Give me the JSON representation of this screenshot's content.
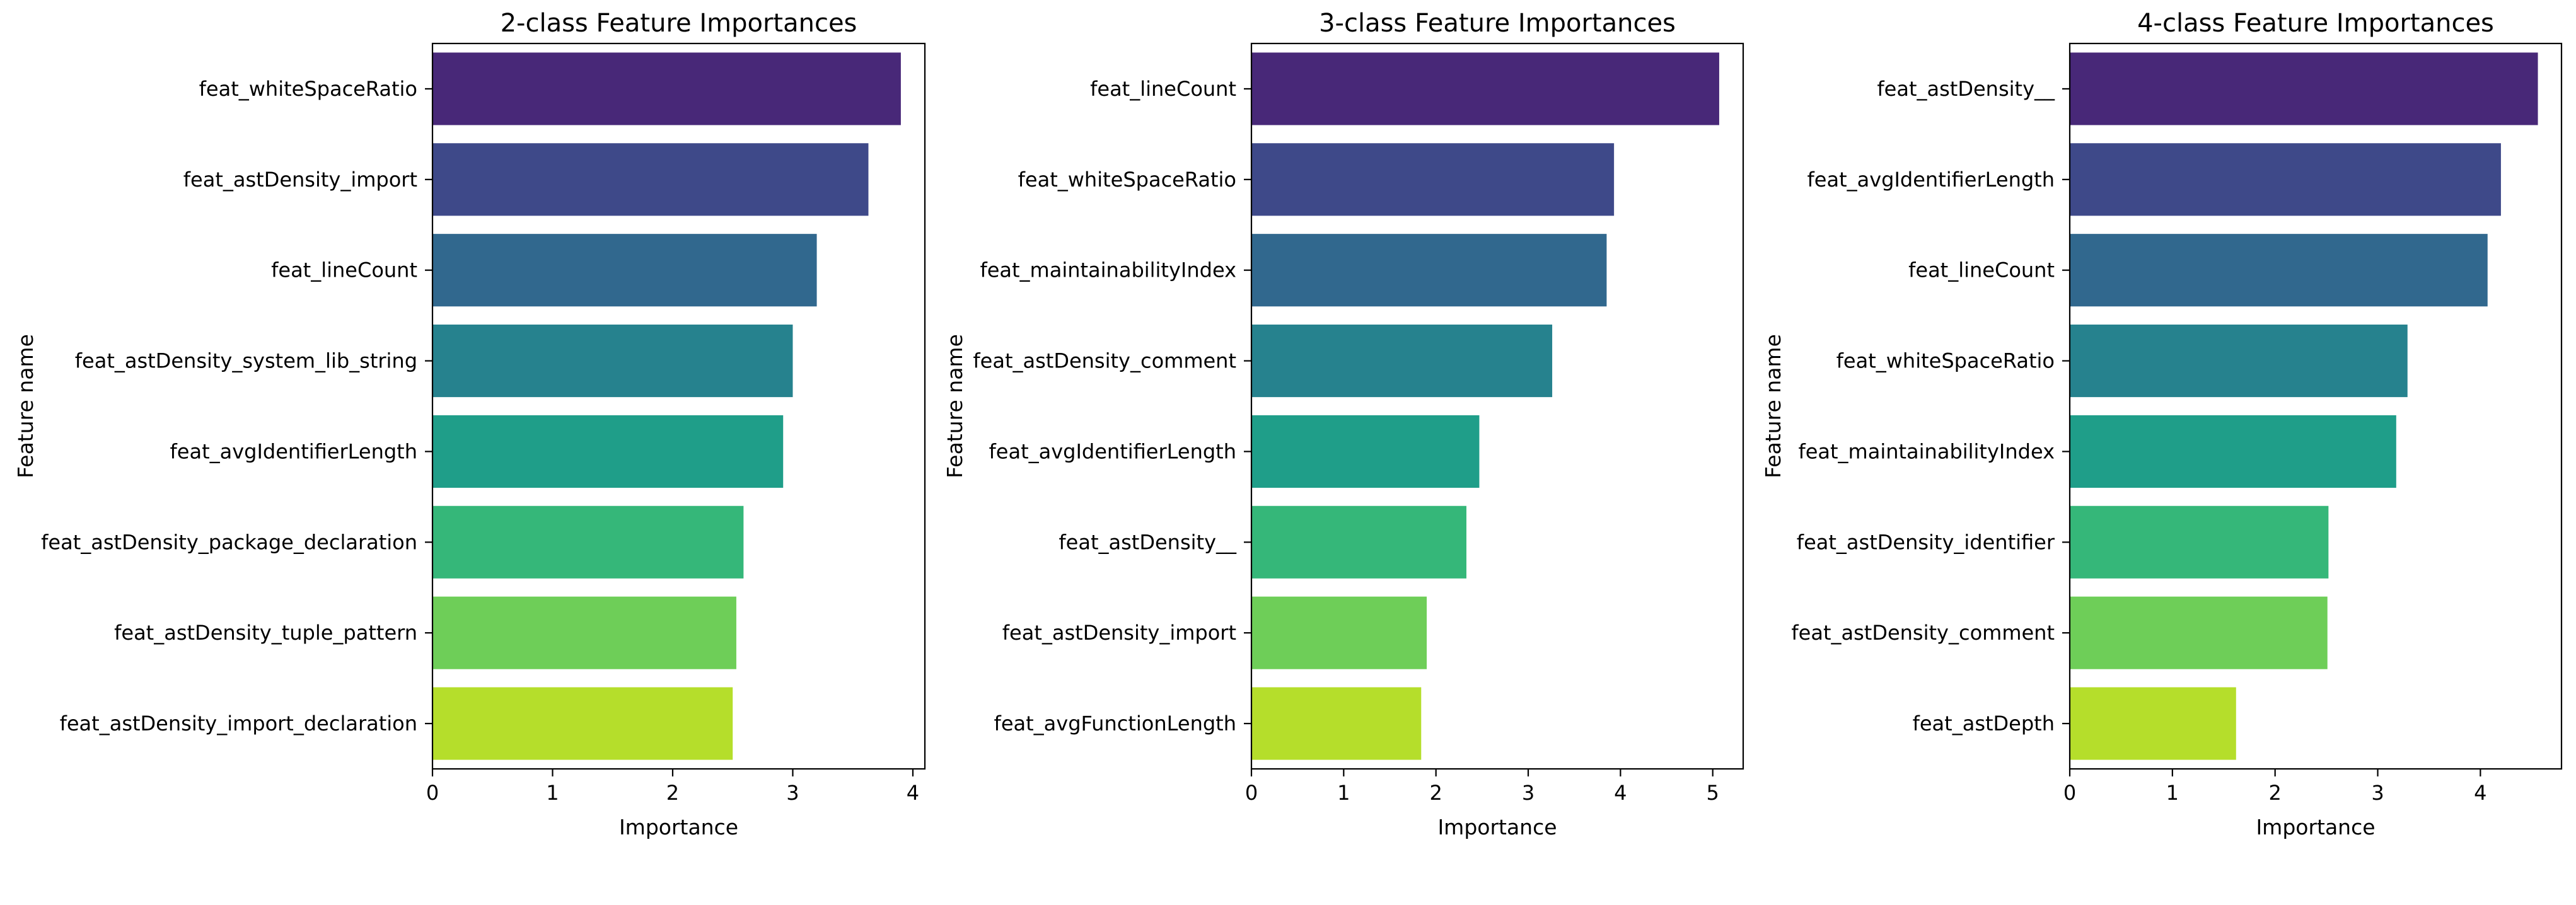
{
  "chart_data": [
    {
      "type": "bar",
      "orientation": "horizontal",
      "title": "2-class Feature Importances",
      "xlabel": "Importance",
      "ylabel": "Feature name",
      "xlim": [
        0,
        4.1
      ],
      "xticks": [
        0,
        1,
        2,
        3,
        4
      ],
      "categories": [
        "feat_whiteSpaceRatio",
        "feat_astDensity_import",
        "feat_lineCount",
        "feat_astDensity_system_lib_string",
        "feat_avgIdentifierLength",
        "feat_astDensity_package_declaration",
        "feat_astDensity_tuple_pattern",
        "feat_astDensity_import_declaration"
      ],
      "values": [
        3.9,
        3.63,
        3.2,
        3.0,
        2.92,
        2.59,
        2.53,
        2.5
      ],
      "colors": [
        "#482878",
        "#3e4989",
        "#31688e",
        "#26828e",
        "#1f9e89",
        "#35b779",
        "#6ece58",
        "#b5de2b"
      ]
    },
    {
      "type": "bar",
      "orientation": "horizontal",
      "title": "3-class Feature Importances",
      "xlabel": "Importance",
      "ylabel": "Feature name",
      "xlim": [
        0,
        5.33
      ],
      "xticks": [
        0,
        1,
        2,
        3,
        4,
        5
      ],
      "categories": [
        "feat_lineCount",
        "feat_whiteSpaceRatio",
        "feat_maintainabilityIndex",
        "feat_astDensity_comment",
        "feat_avgIdentifierLength",
        "feat_astDensity__",
        "feat_astDensity_import",
        "feat_avgFunctionLength"
      ],
      "values": [
        5.07,
        3.93,
        3.85,
        3.26,
        2.47,
        2.33,
        1.9,
        1.84
      ],
      "colors": [
        "#482878",
        "#3e4989",
        "#31688e",
        "#26828e",
        "#1f9e89",
        "#35b779",
        "#6ece58",
        "#b5de2b"
      ]
    },
    {
      "type": "bar",
      "orientation": "horizontal",
      "title": "4-class Feature Importances",
      "xlabel": "Importance",
      "ylabel": "Feature name",
      "xlim": [
        0,
        4.79
      ],
      "xticks": [
        0,
        1,
        2,
        3,
        4
      ],
      "categories": [
        "feat_astDensity__",
        "feat_avgIdentifierLength",
        "feat_lineCount",
        "feat_whiteSpaceRatio",
        "feat_maintainabilityIndex",
        "feat_astDensity_identifier",
        "feat_astDensity_comment",
        "feat_astDepth"
      ],
      "values": [
        4.56,
        4.2,
        4.07,
        3.29,
        3.18,
        2.52,
        2.51,
        1.62
      ],
      "colors": [
        "#482878",
        "#3e4989",
        "#31688e",
        "#26828e",
        "#1f9e89",
        "#35b779",
        "#6ece58",
        "#b5de2b"
      ]
    }
  ]
}
